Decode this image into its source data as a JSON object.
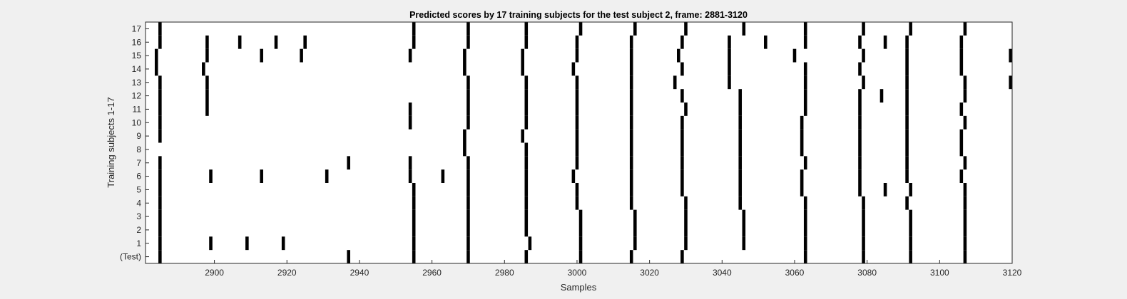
{
  "chart_data": {
    "type": "raster",
    "title": "Predicted scores by 17 training subjects for the test subject 2, frame: 2881-3120",
    "xlabel": "Samples",
    "ylabel": "Training subjects 1-17",
    "xlim": [
      2881,
      3120
    ],
    "ylim": [
      -0.5,
      17.5
    ],
    "x_ticks": [
      2900,
      2920,
      2940,
      2960,
      2980,
      3000,
      3020,
      3040,
      3060,
      3080,
      3100,
      3120
    ],
    "y_ticks": [
      {
        "value": 0,
        "label": "(Test)"
      },
      {
        "value": 1,
        "label": "1"
      },
      {
        "value": 2,
        "label": "2"
      },
      {
        "value": 3,
        "label": "3"
      },
      {
        "value": 4,
        "label": "4"
      },
      {
        "value": 5,
        "label": "5"
      },
      {
        "value": 6,
        "label": "6"
      },
      {
        "value": 7,
        "label": "7"
      },
      {
        "value": 8,
        "label": "8"
      },
      {
        "value": 9,
        "label": "9"
      },
      {
        "value": 10,
        "label": "10"
      },
      {
        "value": 11,
        "label": "11"
      },
      {
        "value": 12,
        "label": "12"
      },
      {
        "value": 13,
        "label": "13"
      },
      {
        "value": 14,
        "label": "14"
      },
      {
        "value": 15,
        "label": "15"
      },
      {
        "value": 16,
        "label": "16"
      },
      {
        "value": 17,
        "label": "17"
      }
    ],
    "grid": false,
    "mark_color": "#000000",
    "rows": [
      {
        "row": 0,
        "x": [
          2885,
          2937,
          2955,
          2970,
          2986,
          3001,
          3015,
          3029,
          3063,
          3079,
          3092,
          3107
        ]
      },
      {
        "row": 1,
        "x": [
          2885,
          2899,
          2909,
          2919,
          2955,
          2970,
          2987,
          3001,
          3016,
          3030,
          3046,
          3063,
          3079,
          3092,
          3107
        ]
      },
      {
        "row": 2,
        "x": [
          2885,
          2955,
          2970,
          2986,
          3001,
          3016,
          3030,
          3046,
          3063,
          3079,
          3092,
          3107
        ]
      },
      {
        "row": 3,
        "x": [
          2885,
          2955,
          2970,
          2986,
          3001,
          3016,
          3030,
          3046,
          3063,
          3079,
          3092,
          3107
        ]
      },
      {
        "row": 4,
        "x": [
          2885,
          2955,
          2970,
          2986,
          3000,
          3015,
          3030,
          3045,
          3063,
          3079,
          3091,
          3107
        ]
      },
      {
        "row": 5,
        "x": [
          2885,
          2955,
          2970,
          2986,
          3000,
          3015,
          3029,
          3045,
          3062,
          3078,
          3085,
          3092,
          3107
        ]
      },
      {
        "row": 6,
        "x": [
          2885,
          2899,
          2913,
          2931,
          2954,
          2963,
          2970,
          2986,
          2999,
          3015,
          3029,
          3045,
          3062,
          3078,
          3091,
          3106
        ]
      },
      {
        "row": 7,
        "x": [
          2885,
          2937,
          2954,
          2970,
          2986,
          3000,
          3015,
          3029,
          3045,
          3063,
          3078,
          3091,
          3107
        ]
      },
      {
        "row": 8,
        "x": [
          2969,
          2986,
          3000,
          3015,
          3029,
          3045,
          3062,
          3078,
          3091,
          3106
        ]
      },
      {
        "row": 9,
        "x": [
          2885,
          2969,
          2985,
          3000,
          3015,
          3029,
          3045,
          3062,
          3078,
          3091,
          3106
        ]
      },
      {
        "row": 10,
        "x": [
          2885,
          2954,
          2970,
          2986,
          3000,
          3015,
          3029,
          3045,
          3062,
          3078,
          3091,
          3107
        ]
      },
      {
        "row": 11,
        "x": [
          2885,
          2898,
          2954,
          2970,
          2986,
          3000,
          3015,
          3030,
          3045,
          3063,
          3078,
          3091,
          3106
        ]
      },
      {
        "row": 12,
        "x": [
          2885,
          2898,
          2970,
          2986,
          3000,
          3015,
          3029,
          3045,
          3063,
          3078,
          3084,
          3091,
          3107
        ]
      },
      {
        "row": 13,
        "x": [
          2885,
          2898,
          2970,
          2986,
          3000,
          3015,
          3027,
          3042,
          3063,
          3079,
          3091,
          3107,
          3120
        ]
      },
      {
        "row": 14,
        "x": [
          2884,
          2897,
          2969,
          2985,
          2999,
          3015,
          3029,
          3042,
          3063,
          3078,
          3091,
          3106
        ]
      },
      {
        "row": 15,
        "x": [
          2884,
          2898,
          2913,
          2924,
          2954,
          2969,
          2985,
          3000,
          3015,
          3028,
          3042,
          3060,
          3079,
          3091,
          3106,
          3120
        ]
      },
      {
        "row": 16,
        "x": [
          2885,
          2898,
          2907,
          2917,
          2925,
          2955,
          2970,
          2986,
          3000,
          3015,
          3029,
          3042,
          3052,
          3063,
          3078,
          3085,
          3091,
          3106
        ]
      },
      {
        "row": 17,
        "x": [
          2885,
          2955,
          2970,
          2986,
          3001,
          3016,
          3030,
          3046,
          3063,
          3079,
          3092,
          3107
        ]
      }
    ]
  }
}
